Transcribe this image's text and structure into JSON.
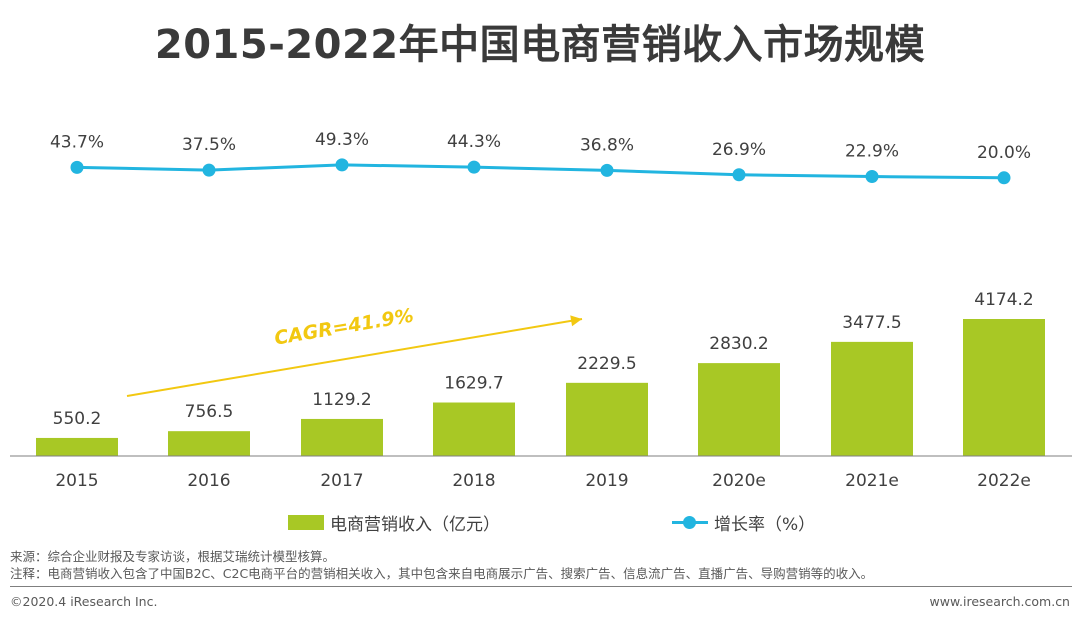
{
  "title": "2015-2022年中国电商营销收入市场规模",
  "colors": {
    "bar": "#a8c825",
    "line": "#22b5e0",
    "cagr": "#f2c811",
    "axis": "#7f7f7f"
  },
  "cagr_label": "CAGR=41.9%",
  "legend": {
    "bar_label": "电商营销收入（亿元）",
    "line_label": "增长率（%）"
  },
  "notes": {
    "source": "来源：综合企业财报及专家访谈，根据艾瑞统计模型核算。",
    "note": "注释：电商营销收入包含了中国B2C、C2C电商平台的营销相关收入，其中包含来自电商展示广告、搜索广告、信息流广告、直播广告、导购营销等的收入。"
  },
  "footer": {
    "copyright": "©2020.4 iResearch Inc.",
    "website": "www.iresearch.com.cn"
  },
  "chart_data": {
    "type": "bar",
    "categories": [
      "2015",
      "2016",
      "2017",
      "2018",
      "2019",
      "2020e",
      "2021e",
      "2022e"
    ],
    "series": [
      {
        "name": "电商营销收入（亿元）",
        "type": "bar",
        "values": [
          550.2,
          756.5,
          1129.2,
          1629.7,
          2229.5,
          2830.2,
          3477.5,
          4174.2
        ],
        "labels": [
          "550.2",
          "756.5",
          "1129.2",
          "1629.7",
          "2229.5",
          "2830.2",
          "3477.5",
          "4174.2"
        ]
      },
      {
        "name": "增长率（%）",
        "type": "line",
        "values": [
          43.7,
          37.5,
          49.3,
          44.3,
          36.8,
          26.9,
          22.9,
          20.0
        ],
        "labels": [
          "43.7%",
          "37.5%",
          "49.3%",
          "44.3%",
          "36.8%",
          "26.9%",
          "22.9%",
          "20.0%"
        ]
      }
    ],
    "title": "2015-2022年中国电商营销收入市场规模",
    "legend_position": "bottom",
    "grid": false
  }
}
